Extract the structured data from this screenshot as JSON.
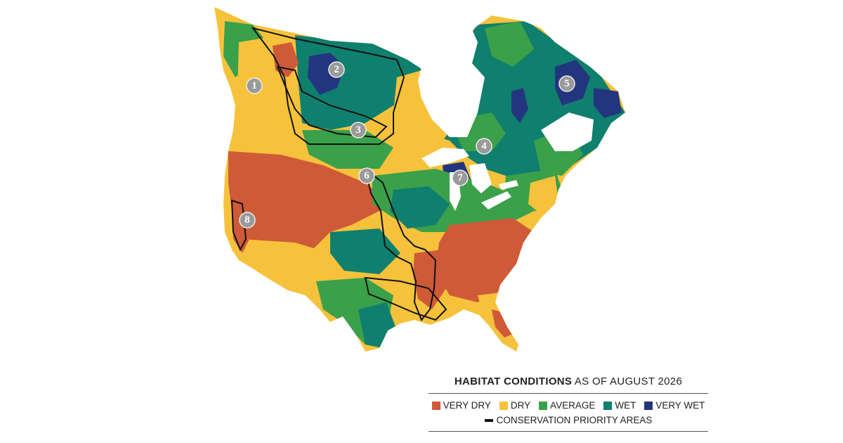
{
  "legend": {
    "title_bold": "HABITAT CONDITIONS",
    "title_rest": " AS OF AUGUST 2026",
    "categories": [
      {
        "label": "VERY DRY",
        "color": "#cf5a38"
      },
      {
        "label": "DRY",
        "color": "#f6c23c"
      },
      {
        "label": "AVERAGE",
        "color": "#3aa04a"
      },
      {
        "label": "WET",
        "color": "#0f7f6e"
      },
      {
        "label": "VERY WET",
        "color": "#24357f"
      }
    ],
    "boundary_label": "CONSERVATION PRIORITY AREAS"
  },
  "markers": [
    "1",
    "2",
    "3",
    "4",
    "5",
    "6",
    "7",
    "8"
  ],
  "colors": {
    "water": "#ffffff",
    "boundary": "#111111"
  }
}
